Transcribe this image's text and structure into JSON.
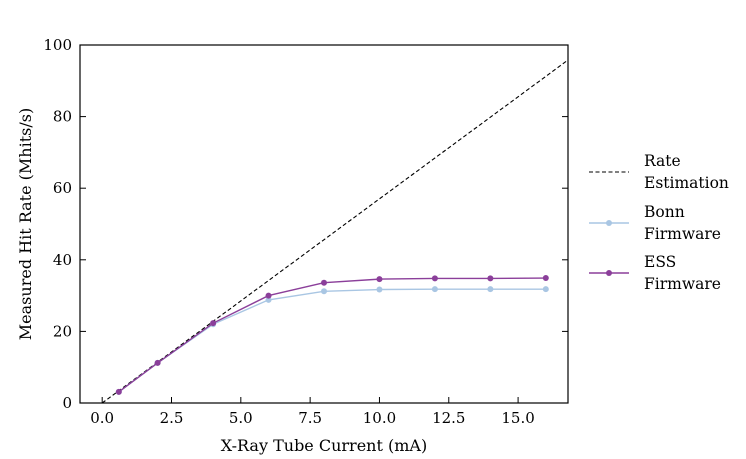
{
  "chart_data": {
    "type": "line",
    "xlabel": "X-Ray Tube Current (mA)",
    "ylabel": "Measured Hit Rate (Mhits/s)",
    "xlim": [
      -0.8,
      16.8
    ],
    "ylim": [
      0,
      100
    ],
    "xticks": [
      "0.0",
      "2.5",
      "5.0",
      "7.5",
      "10.0",
      "12.5",
      "15.0"
    ],
    "yticks": [
      "0",
      "20",
      "40",
      "60",
      "80",
      "100"
    ],
    "grid": false,
    "legend_position": "right",
    "series": [
      {
        "name": [
          "Rate",
          "Estimation"
        ],
        "style": "dashed",
        "color": "#000000",
        "markers": false,
        "x": [
          0,
          16.8
        ],
        "y": [
          0,
          95.8
        ]
      },
      {
        "name": [
          "Bonn",
          "Firmware"
        ],
        "style": "solid",
        "color": "#a9c6e3",
        "markers": true,
        "x": [
          0.6,
          2,
          4,
          6,
          8,
          10,
          12,
          14,
          16
        ],
        "y": [
          3.1,
          11.2,
          22.0,
          28.8,
          31.2,
          31.7,
          31.8,
          31.8,
          31.8
        ]
      },
      {
        "name": [
          "ESS",
          "Firmware"
        ],
        "style": "solid",
        "color": "#8b3f9a",
        "markers": true,
        "x": [
          0.6,
          2,
          4,
          6,
          8,
          10,
          12,
          14,
          16
        ],
        "y": [
          3.1,
          11.2,
          22.3,
          30.0,
          33.6,
          34.6,
          34.8,
          34.8,
          34.9
        ]
      }
    ]
  }
}
